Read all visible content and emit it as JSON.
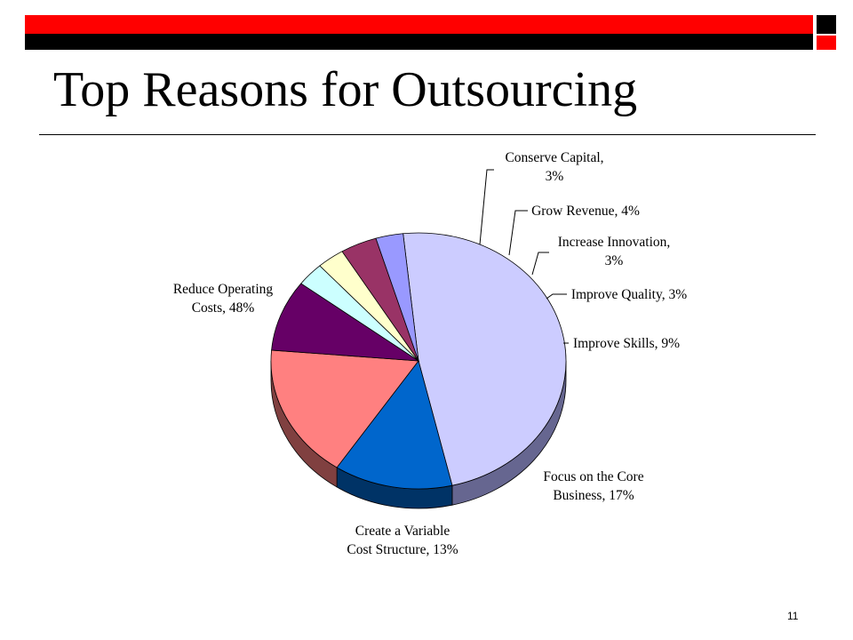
{
  "slide": {
    "title": "Top Reasons for Outsourcing",
    "page_number": "11"
  },
  "colors": {
    "header_red": "#ff0000",
    "header_black": "#000000"
  },
  "chart_data": {
    "type": "pie",
    "style": "3d",
    "title": "",
    "series": [
      {
        "name": "Reduce Operating Costs",
        "label": [
          "Reduce Operating",
          "Costs, 48%"
        ],
        "value": 48,
        "color": "#ccccff",
        "side": "#666690"
      },
      {
        "name": "Create a Variable Cost Structure",
        "label": [
          "Create a Variable",
          "Cost Structure, 13%"
        ],
        "value": 13,
        "color": "#0066cc",
        "side": "#003366"
      },
      {
        "name": "Focus on the Core Business",
        "label": [
          "Focus on the Core",
          "Business, 17%"
        ],
        "value": 17,
        "color": "#ff8080",
        "side": "#804040"
      },
      {
        "name": "Improve Skills",
        "label": [
          "Improve Skills, 9%"
        ],
        "value": 9,
        "color": "#660066",
        "side": "#330033"
      },
      {
        "name": "Improve Quality",
        "label": [
          "Improve Quality, 3%"
        ],
        "value": 3,
        "color": "#ccffff",
        "side": "#668080"
      },
      {
        "name": "Increase Innovation",
        "label": [
          "Increase Innovation,",
          "3%"
        ],
        "value": 3,
        "color": "#ffffcc",
        "side": "#808066"
      },
      {
        "name": "Grow Revenue",
        "label": [
          "Grow Revenue, 4%"
        ],
        "value": 4,
        "color": "#993366",
        "side": "#4d1933"
      },
      {
        "name": "Conserve Capital",
        "label": [
          "Conserve Capital,",
          "3%"
        ],
        "value": 3,
        "color": "#9999ff",
        "side": "#4d4d80"
      }
    ]
  }
}
